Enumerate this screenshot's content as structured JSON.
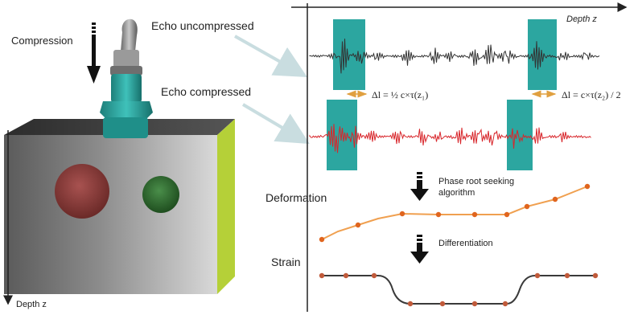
{
  "labels": {
    "compression": "Compression",
    "depth_left": "Depth z",
    "depth_top": "Depth z",
    "echo_uncompressed": "Echo uncompressed",
    "echo_compressed": "Echo compressed",
    "formula_left": "Δl = ½ c×τ(z₁)",
    "formula_right": "Δl = c×τ(z₂) / 2",
    "phase_root_line1": "Phase root seeking",
    "phase_root_line2": "algorithm",
    "deformation": "Deformation",
    "differentiation": "Differentiation",
    "strain": "Strain"
  },
  "colors": {
    "teal": "#1a9e98",
    "echo_uncompressed": "#333333",
    "echo_compressed": "#d8262b",
    "curve_line": "#f0a050",
    "curve_dots": "#e0651e",
    "strain_line": "#3a3a3a",
    "strain_dots": "#c05a3a",
    "phantom_dark": "#4a4a4a",
    "phantom_side": "#b5d038",
    "inclusion_red": "#8b3a38",
    "inclusion_green": "#2e6b2e",
    "arrow_light": "#c9dde0"
  }
}
